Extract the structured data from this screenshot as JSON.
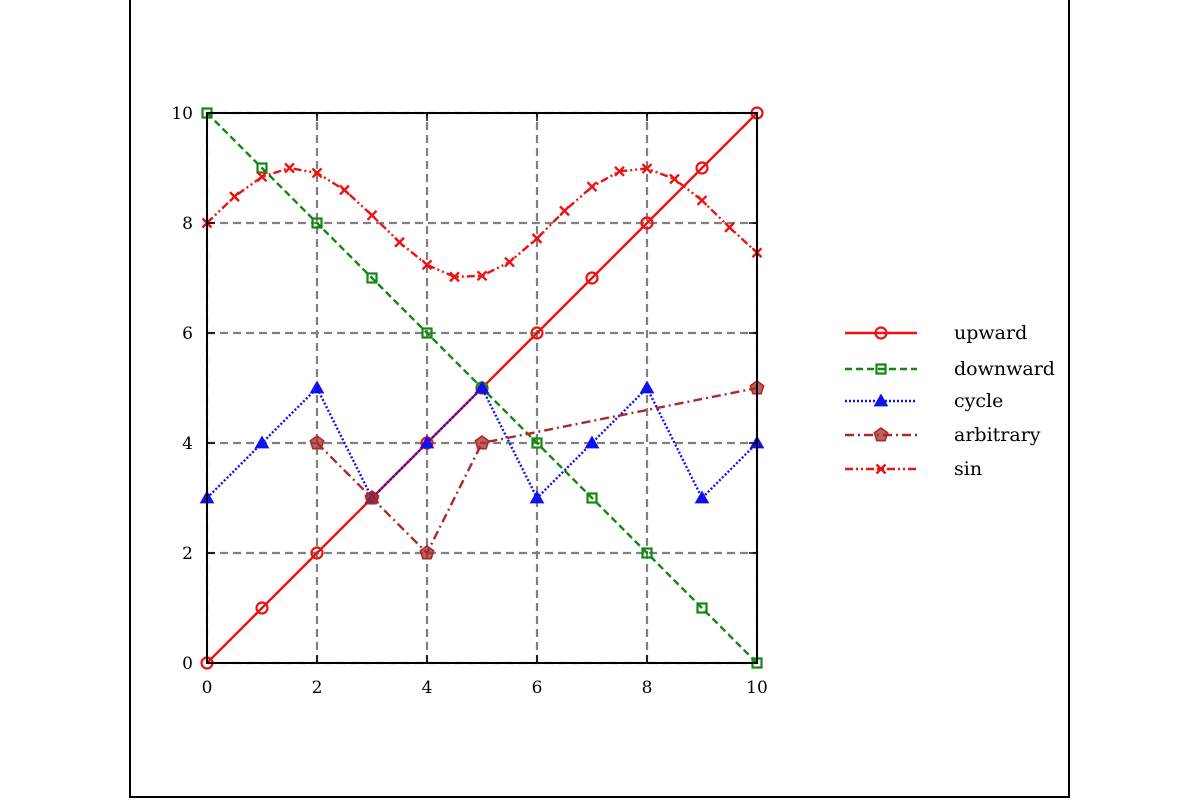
{
  "chart_data": {
    "type": "line",
    "title": "",
    "xlabel": "",
    "ylabel": "",
    "xlim": [
      0,
      10
    ],
    "ylim": [
      0,
      10
    ],
    "grid": true,
    "legend_position": "right",
    "x_ticks": [
      "0",
      "2",
      "4",
      "6",
      "8",
      "10"
    ],
    "y_ticks": [
      "0",
      "2",
      "4",
      "6",
      "8",
      "10"
    ],
    "series": [
      {
        "name": "upward",
        "color": "#ee1111",
        "line_style": "solid",
        "marker": "circle",
        "x": [
          0,
          1,
          2,
          3,
          4,
          5,
          6,
          7,
          8,
          9,
          10
        ],
        "y": [
          0,
          1,
          2,
          3,
          4,
          5,
          6,
          7,
          8,
          9,
          10
        ]
      },
      {
        "name": "downward",
        "color": "#118811",
        "line_style": "dashed",
        "marker": "square",
        "x": [
          0,
          1,
          2,
          3,
          4,
          5,
          6,
          7,
          8,
          9,
          10
        ],
        "y": [
          10,
          9,
          8,
          7,
          6,
          5,
          4,
          3,
          2,
          1,
          0
        ]
      },
      {
        "name": "cycle",
        "color": "#1111ee",
        "line_style": "dotted",
        "marker": "triangle",
        "x": [
          0,
          1,
          2,
          3,
          4,
          5,
          6,
          7,
          8,
          9,
          10
        ],
        "y": [
          3,
          4,
          5,
          3,
          4,
          5,
          3,
          4,
          5,
          3,
          4
        ]
      },
      {
        "name": "arbitrary",
        "color": "#aa2a2a",
        "line_style": "dashdot",
        "marker": "pentagon",
        "x": [
          2,
          3,
          4,
          5,
          10
        ],
        "y": [
          4,
          3,
          2,
          4,
          5
        ]
      },
      {
        "name": "sin",
        "color": "#ee1111",
        "line_style": "dashdotdot",
        "marker": "cross",
        "x": [
          0,
          0.5,
          1,
          1.5,
          2,
          2.5,
          3,
          3.5,
          4,
          4.5,
          5,
          5.5,
          6,
          6.5,
          7,
          7.5,
          8,
          8.5,
          9,
          9.5,
          10
        ],
        "y": [
          8.0,
          8.48,
          8.84,
          9.0,
          8.91,
          8.6,
          8.14,
          7.65,
          7.24,
          7.02,
          7.04,
          7.29,
          7.72,
          8.22,
          8.66,
          8.94,
          8.99,
          8.8,
          8.41,
          7.92,
          7.46
        ]
      }
    ]
  }
}
